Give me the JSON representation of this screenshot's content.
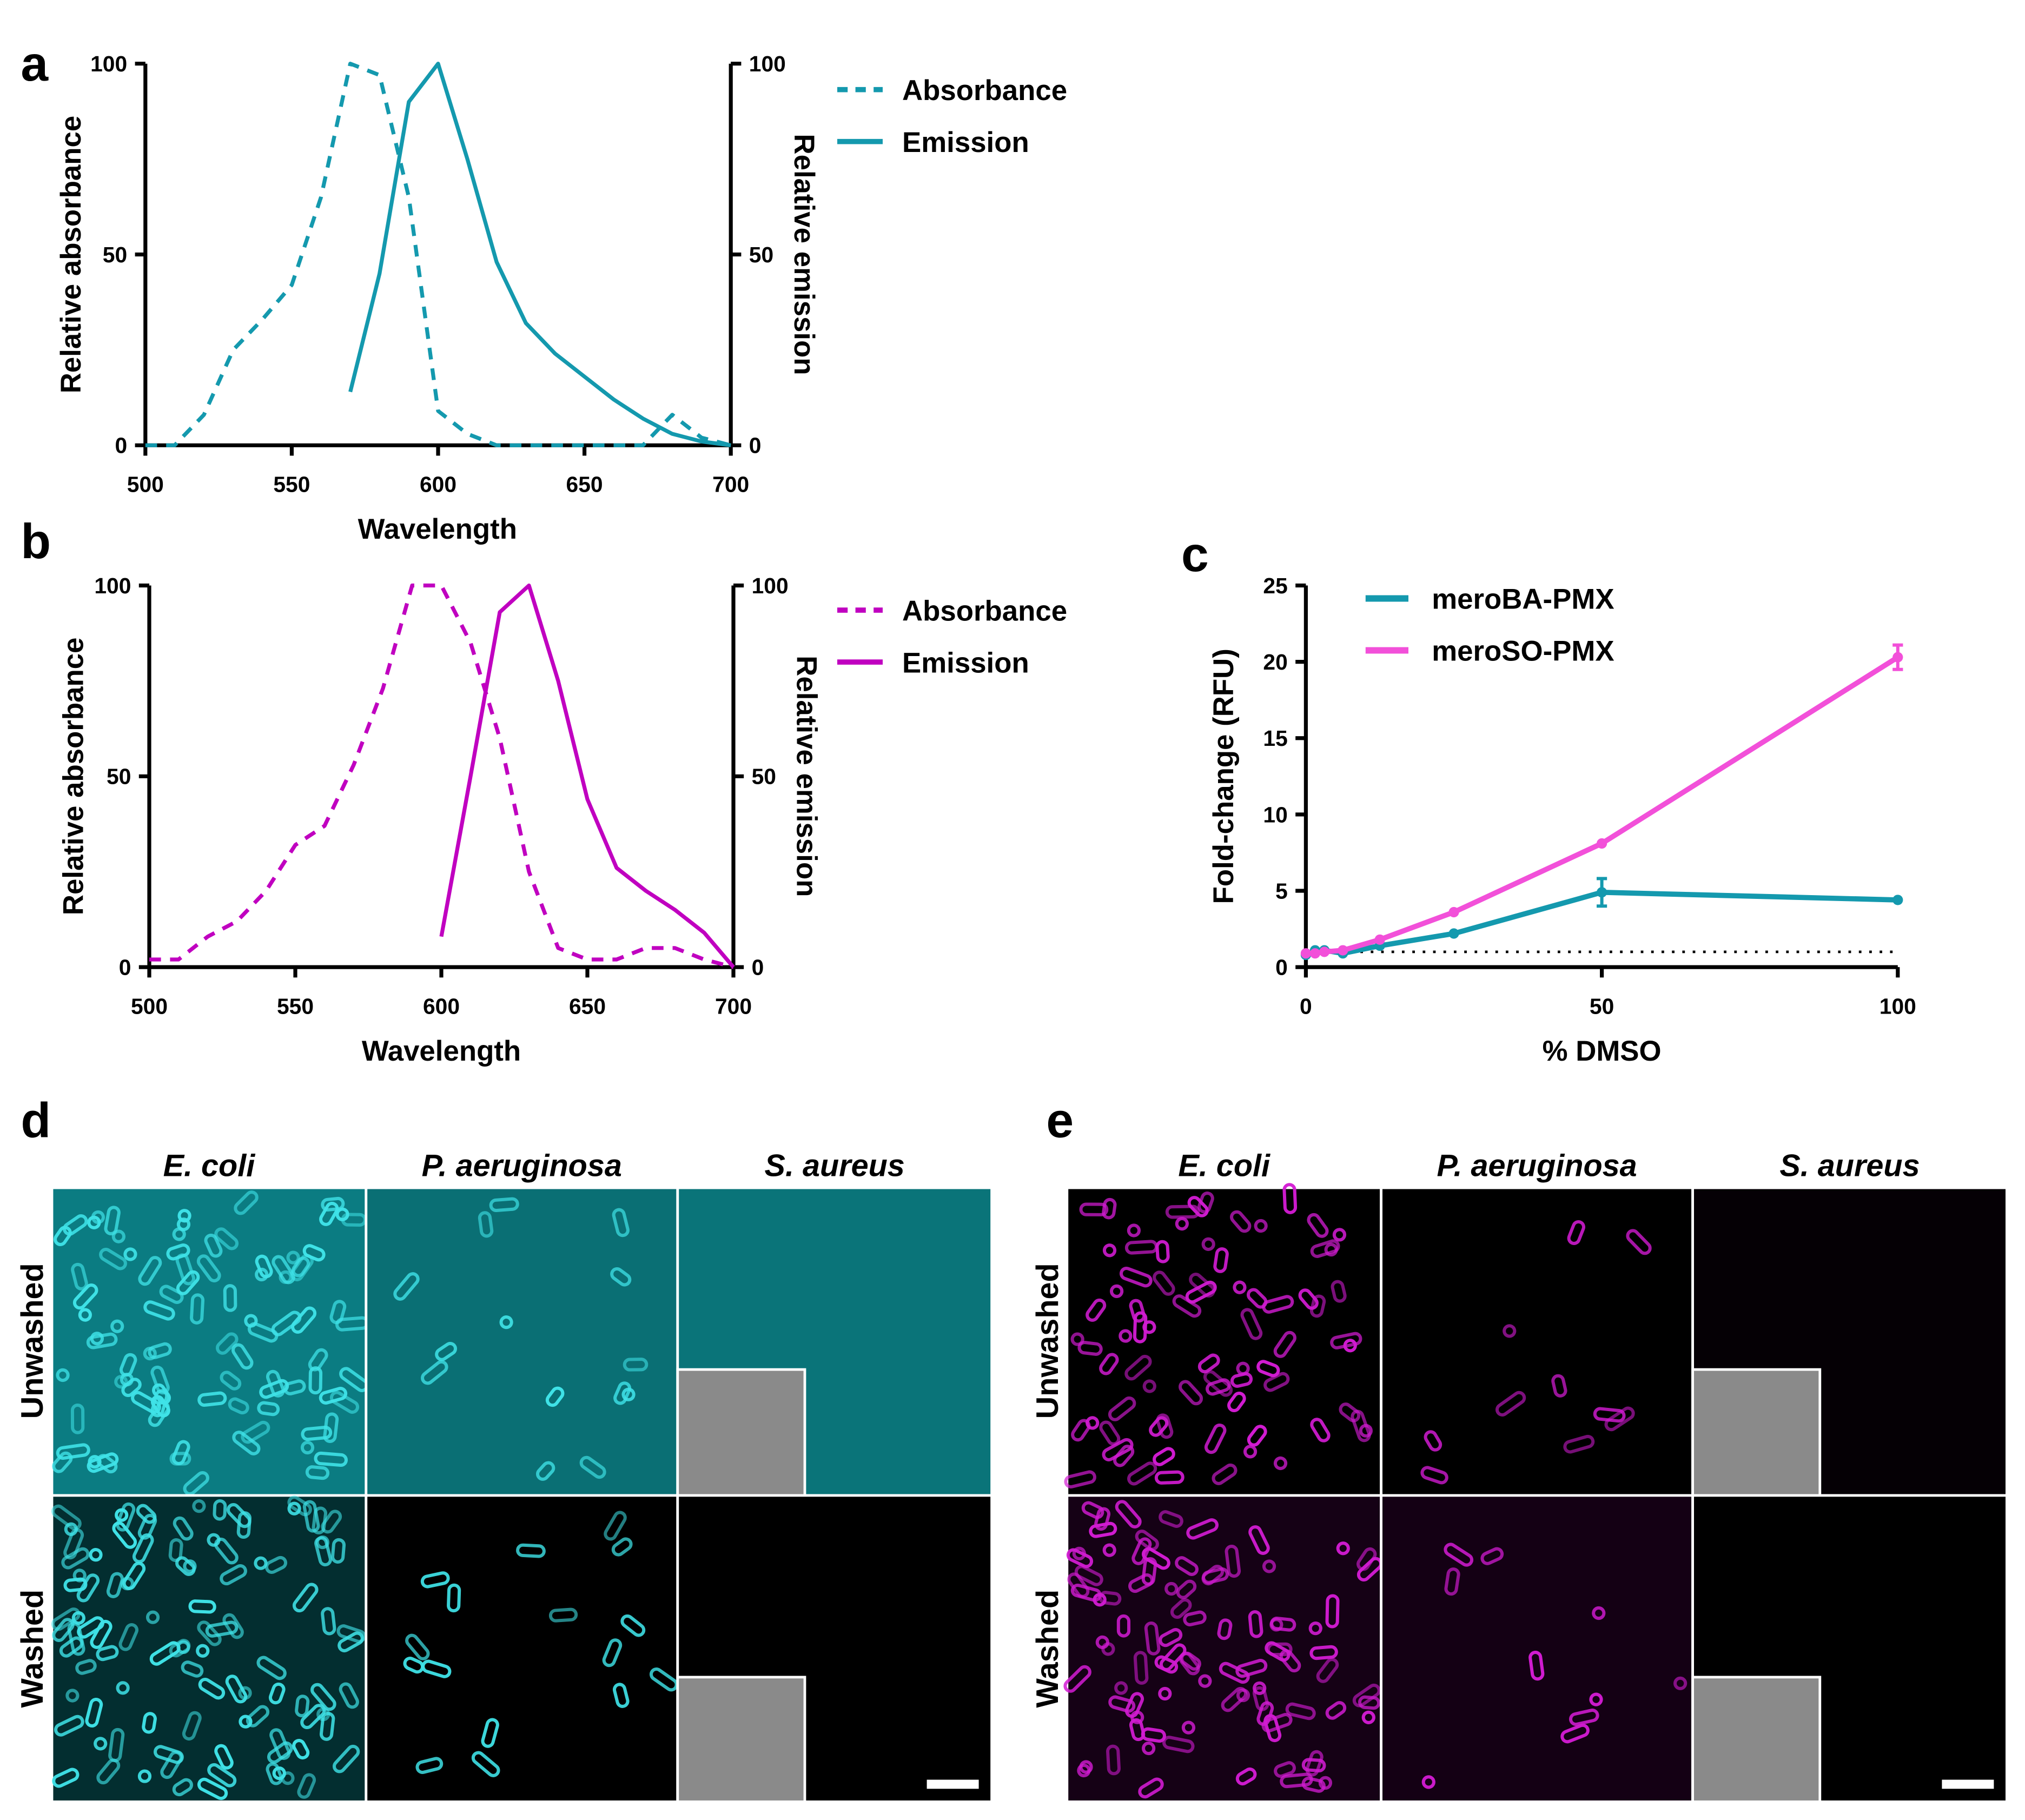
{
  "panels": {
    "a": {
      "letter": "a",
      "legend": [
        "Absorbance",
        "Emission"
      ],
      "xlabel": "Wavelength",
      "ylabel_left": "Relative absorbance",
      "ylabel_right": "Relative emission",
      "xticks": [
        "500",
        "550",
        "600",
        "650",
        "700"
      ],
      "yticks_left": [
        "0",
        "50",
        "100"
      ],
      "yticks_right": [
        "0",
        "50",
        "100"
      ]
    },
    "b": {
      "letter": "b",
      "legend": [
        "Absorbance",
        "Emission"
      ],
      "xlabel": "Wavelength",
      "ylabel_left": "Relative absorbance",
      "ylabel_right": "Relative emission",
      "xticks": [
        "500",
        "550",
        "600",
        "650",
        "700"
      ],
      "yticks_left": [
        "0",
        "50",
        "100"
      ],
      "yticks_right": [
        "0",
        "50",
        "100"
      ]
    },
    "c": {
      "letter": "c",
      "legend": [
        "meroBA-PMX",
        "meroSO-PMX"
      ],
      "xlabel": "% DMSO",
      "ylabel": "Fold-change (RFU)",
      "xticks": [
        "0",
        "50",
        "100"
      ],
      "yticks": [
        "0",
        "5",
        "10",
        "15",
        "20",
        "25"
      ]
    },
    "d": {
      "letter": "d",
      "columns": [
        "E. coli",
        "P. aeruginosa",
        "S. aureus"
      ],
      "rows": [
        "Unwashed",
        "Washed"
      ]
    },
    "e": {
      "letter": "e",
      "columns": [
        "E. coli",
        "P. aeruginosa",
        "S. aureus"
      ],
      "rows": [
        "Unwashed",
        "Washed"
      ]
    }
  },
  "colors": {
    "teal": "#1499AE",
    "magenta": "#C000C0",
    "pink": "#F250D9",
    "cyan_bg": "#0B7C82",
    "cyan_cell": "#3FE3E8"
  },
  "chart_data": [
    {
      "id": "a",
      "type": "line",
      "xlabel": "Wavelength",
      "ylabel": "Relative absorbance",
      "y2label": "Relative emission",
      "xlim": [
        500,
        700
      ],
      "ylim": [
        0,
        100
      ],
      "series": [
        {
          "name": "Absorbance",
          "style": "dashed",
          "color": "#1499AE",
          "x": [
            500,
            510,
            520,
            530,
            540,
            550,
            560,
            570,
            580,
            590,
            600,
            610,
            620,
            630,
            640,
            650,
            660,
            670,
            680,
            690,
            700
          ],
          "y": [
            0,
            0,
            8,
            25,
            33,
            42,
            65,
            100,
            97,
            65,
            9,
            3,
            0,
            0,
            0,
            0,
            0,
            0,
            8,
            2,
            0
          ]
        },
        {
          "name": "Emission",
          "style": "solid",
          "color": "#1499AE",
          "x": [
            570,
            580,
            590,
            600,
            610,
            620,
            630,
            640,
            650,
            660,
            670,
            680,
            690,
            700
          ],
          "y": [
            14,
            45,
            90,
            100,
            75,
            48,
            32,
            24,
            18,
            12,
            7,
            3,
            1,
            0
          ]
        }
      ]
    },
    {
      "id": "b",
      "type": "line",
      "xlabel": "Wavelength",
      "ylabel": "Relative absorbance",
      "y2label": "Relative emission",
      "xlim": [
        500,
        700
      ],
      "ylim": [
        0,
        100
      ],
      "series": [
        {
          "name": "Absorbance",
          "style": "dashed",
          "color": "#C000C0",
          "x": [
            500,
            510,
            520,
            530,
            540,
            550,
            560,
            570,
            580,
            590,
            600,
            610,
            620,
            630,
            640,
            650,
            660,
            670,
            680,
            690,
            700
          ],
          "y": [
            2,
            2,
            8,
            12,
            20,
            32,
            37,
            53,
            73,
            100,
            100,
            85,
            60,
            25,
            5,
            2,
            2,
            5,
            5,
            2,
            0
          ]
        },
        {
          "name": "Emission",
          "style": "solid",
          "color": "#C000C0",
          "x": [
            600,
            610,
            620,
            630,
            640,
            650,
            660,
            670,
            680,
            690,
            700
          ],
          "y": [
            8,
            50,
            93,
            100,
            75,
            44,
            26,
            20,
            15,
            9,
            0
          ]
        }
      ]
    },
    {
      "id": "c",
      "type": "line",
      "xlabel": "% DMSO",
      "ylabel": "Fold-change (RFU)",
      "xlim": [
        0,
        100
      ],
      "ylim": [
        0,
        25
      ],
      "reference_line": 1,
      "series": [
        {
          "name": "meroBA-PMX",
          "color": "#1499AE",
          "x": [
            0,
            1.56,
            3.125,
            6.25,
            12.5,
            25,
            50,
            100
          ],
          "y": [
            0.8,
            1.1,
            1.1,
            0.9,
            1.4,
            2.2,
            4.9,
            4.4
          ],
          "err": [
            0.1,
            0.1,
            0.1,
            0.1,
            0.1,
            0.1,
            0.9,
            0.1
          ]
        },
        {
          "name": "meroSO-PMX",
          "color": "#F250D9",
          "x": [
            0,
            1.56,
            3.125,
            6.25,
            12.5,
            25,
            50,
            100
          ],
          "y": [
            0.9,
            0.9,
            1.0,
            1.1,
            1.8,
            3.6,
            8.1,
            20.3
          ],
          "err": [
            0.1,
            0.1,
            0.1,
            0.1,
            0.1,
            0.2,
            0.2,
            0.8
          ]
        }
      ]
    }
  ]
}
